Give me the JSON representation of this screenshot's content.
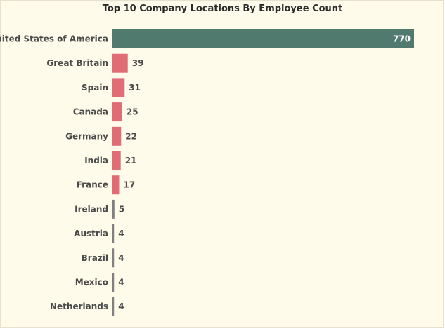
{
  "chart_data": {
    "type": "bar",
    "orientation": "horizontal",
    "title": "Top 10 Company Locations By Employee Count",
    "categories": [
      "United States of America",
      "Great Britain",
      "Spain",
      "Canada",
      "Germany",
      "India",
      "France",
      "Ireland",
      "Austria",
      "Brazil",
      "Mexico",
      "Netherlands"
    ],
    "values": [
      770,
      39,
      31,
      25,
      22,
      21,
      17,
      5,
      4,
      4,
      4,
      4
    ],
    "xlabel": "",
    "ylabel": "",
    "xlim": [
      0,
      770
    ],
    "grid": false,
    "legend": "none",
    "colors": {
      "top": "#507a6e",
      "mid": "#e06c75",
      "low": "#808080",
      "background": "#fffbea"
    }
  }
}
